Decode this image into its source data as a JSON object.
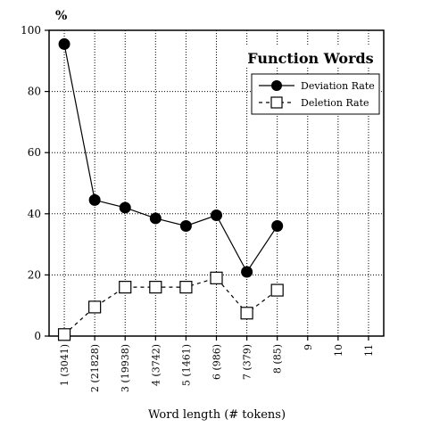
{
  "chart_data": {
    "type": "line",
    "title": "Function Words",
    "ylabel": "%",
    "xlabel": "Word length (# tokens)",
    "ylim": [
      0,
      100
    ],
    "yticks": [
      0,
      20,
      40,
      60,
      80,
      100
    ],
    "categories": [
      "1 (3041)",
      "2 (21828)",
      "3 (19938)",
      "4 (3742)",
      "5 (1461)",
      "6 (986)",
      "7 (379)",
      "8 (85)",
      "9",
      "10",
      "11"
    ],
    "grid": true,
    "legend_position": "top-right",
    "series": [
      {
        "name": "Deviation Rate",
        "marker": "filled-circle",
        "line": "solid",
        "values": [
          95.5,
          44.5,
          42,
          38.5,
          36,
          39.5,
          21,
          36,
          null,
          null,
          null
        ]
      },
      {
        "name": "Deletion Rate",
        "marker": "open-square",
        "line": "dashed",
        "values": [
          0.5,
          9.5,
          16,
          16,
          16,
          19,
          7.5,
          15,
          null,
          null,
          null
        ]
      }
    ]
  }
}
